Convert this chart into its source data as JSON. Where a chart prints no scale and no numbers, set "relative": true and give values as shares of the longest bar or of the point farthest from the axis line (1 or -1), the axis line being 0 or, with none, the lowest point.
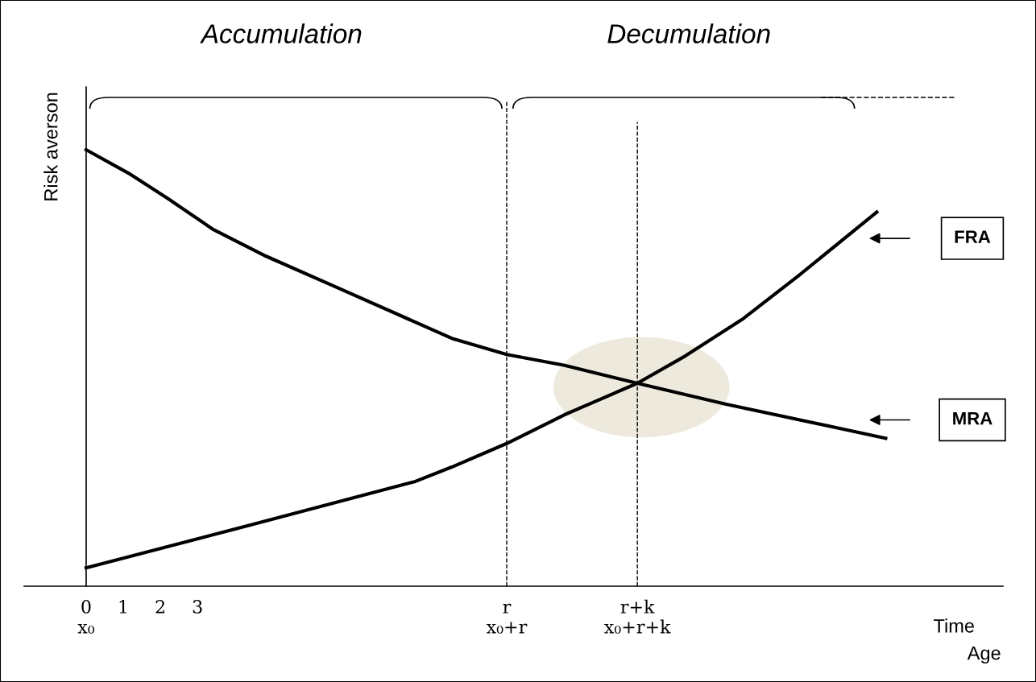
{
  "chart_data": {
    "type": "line",
    "relative": true,
    "ylabel": "Risk averson",
    "xlabel": "Time",
    "annotations": [
      "Accumulation",
      "Decumulation",
      "Age"
    ],
    "xlim": [
      -1.67,
      24.7
    ],
    "xticks": [
      {
        "value": 0,
        "label": "0\nx₀"
      },
      1,
      2,
      3,
      {
        "value": 11.33,
        "label": "r\nx₀+r"
      },
      {
        "value": 14.85,
        "label": "r+k\nx₀+r+k"
      }
    ],
    "series": [
      {
        "name": "MRA",
        "color": "#000000",
        "x": [
          0,
          1.15,
          2.24,
          3.43,
          4.85,
          6.8,
          8.87,
          9.85,
          11.33,
          12.89,
          14.85,
          17.24,
          21.54
        ],
        "values": [
          1.0,
          0.946,
          0.886,
          0.817,
          0.756,
          0.683,
          0.605,
          0.568,
          0.531,
          0.506,
          0.465,
          0.417,
          0.339
        ]
      },
      {
        "name": "FRA",
        "color": "#000000",
        "x": [
          0,
          4.2,
          8.87,
          9.85,
          11.33,
          12.89,
          14.85,
          16.15,
          17.67,
          19.2,
          21.3
        ],
        "values": [
          0.042,
          0.135,
          0.24,
          0.273,
          0.327,
          0.393,
          0.465,
          0.528,
          0.611,
          0.712,
          0.857
        ]
      }
    ],
    "ref_lines": [
      {
        "axis": "x",
        "value": 11.33,
        "line_style": "dashed",
        "color": "#000000"
      },
      {
        "axis": "x",
        "value": 14.85,
        "line_style": "dashed",
        "color": "#000000"
      }
    ],
    "grid": false,
    "legend": "right",
    "marker": "none",
    "line_style": "solid"
  }
}
